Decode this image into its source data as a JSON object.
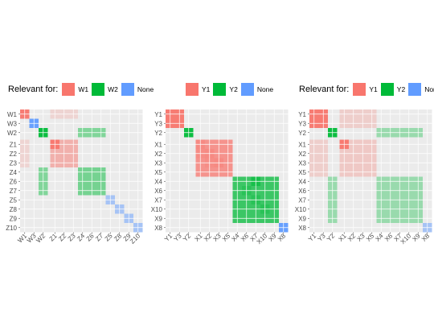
{
  "chart_data": [
    {
      "type": "heatmap",
      "legend": {
        "title": "Relevant for:",
        "entries": [
          {
            "label": "W1",
            "color": "#F8766D"
          },
          {
            "label": "W2",
            "color": "#00BA38"
          },
          {
            "label": "None",
            "color": "#619CFF"
          }
        ]
      },
      "labels": [
        "W1",
        "W3",
        "W2",
        "Z1",
        "Z2",
        "Z3",
        "Z4",
        "Z6",
        "Z7",
        "Z5",
        "Z8",
        "Z9",
        "Z10"
      ],
      "gaps_after": [
        2
      ],
      "blocks": [
        {
          "rows": [
            0,
            0
          ],
          "cols": [
            0,
            0
          ],
          "group": "W1",
          "alpha": 0.95
        },
        {
          "rows": [
            0,
            0
          ],
          "cols": [
            3,
            5
          ],
          "group": "W1",
          "alpha": 0.2
        },
        {
          "rows": [
            3,
            5
          ],
          "cols": [
            0,
            0
          ],
          "group": "W1",
          "alpha": 0.2
        },
        {
          "rows": [
            1,
            1
          ],
          "cols": [
            1,
            1
          ],
          "group": "None",
          "alpha": 0.95
        },
        {
          "rows": [
            2,
            2
          ],
          "cols": [
            2,
            2
          ],
          "group": "W2",
          "alpha": 0.95
        },
        {
          "rows": [
            2,
            2
          ],
          "cols": [
            6,
            8
          ],
          "group": "W2",
          "alpha": 0.45
        },
        {
          "rows": [
            6,
            8
          ],
          "cols": [
            2,
            2
          ],
          "group": "W2",
          "alpha": 0.45
        },
        {
          "rows": [
            3,
            5
          ],
          "cols": [
            3,
            5
          ],
          "group": "W1",
          "alpha": 0.5
        },
        {
          "rows": [
            3,
            3
          ],
          "cols": [
            3,
            3
          ],
          "group": "W1",
          "alpha": 0.95
        },
        {
          "rows": [
            6,
            8
          ],
          "cols": [
            6,
            8
          ],
          "group": "W2",
          "alpha": 0.5
        },
        {
          "rows": [
            9,
            9
          ],
          "cols": [
            9,
            9
          ],
          "group": "None",
          "alpha": 0.5
        },
        {
          "rows": [
            10,
            10
          ],
          "cols": [
            10,
            10
          ],
          "group": "None",
          "alpha": 0.5
        },
        {
          "rows": [
            11,
            11
          ],
          "cols": [
            11,
            11
          ],
          "group": "None",
          "alpha": 0.5
        },
        {
          "rows": [
            12,
            12
          ],
          "cols": [
            12,
            12
          ],
          "group": "None",
          "alpha": 0.5
        }
      ]
    },
    {
      "type": "heatmap",
      "legend": {
        "title": "",
        "entries": [
          {
            "label": "Y1",
            "color": "#F8766D"
          },
          {
            "label": "Y2",
            "color": "#00BA38"
          },
          {
            "label": "None",
            "color": "#619CFF"
          }
        ]
      },
      "labels": [
        "Y1",
        "Y3",
        "Y2",
        "X1",
        "X2",
        "X3",
        "X5",
        "X4",
        "X6",
        "X7",
        "X10",
        "X9",
        "X8"
      ],
      "gaps_after": [
        2
      ],
      "blocks": [
        {
          "rows": [
            0,
            1
          ],
          "cols": [
            0,
            1
          ],
          "group": "Y1",
          "alpha": 0.95
        },
        {
          "rows": [
            2,
            2
          ],
          "cols": [
            2,
            2
          ],
          "group": "Y2",
          "alpha": 0.95
        },
        {
          "rows": [
            3,
            6
          ],
          "cols": [
            3,
            6
          ],
          "group": "Y1",
          "alpha": 0.75
        },
        {
          "rows": [
            3,
            3
          ],
          "cols": [
            3,
            3
          ],
          "group": "Y1",
          "alpha": 0.3
        },
        {
          "rows": [
            4,
            4
          ],
          "cols": [
            4,
            4
          ],
          "group": "Y1",
          "alpha": 0.3
        },
        {
          "rows": [
            5,
            5
          ],
          "cols": [
            5,
            5
          ],
          "group": "Y1",
          "alpha": 0.3
        },
        {
          "rows": [
            4,
            4
          ],
          "cols": [
            3,
            3
          ],
          "group": "Y1",
          "alpha": 0.2
        },
        {
          "rows": [
            5,
            5
          ],
          "cols": [
            4,
            4
          ],
          "group": "Y1",
          "alpha": 0.2
        },
        {
          "rows": [
            7,
            11
          ],
          "cols": [
            7,
            11
          ],
          "group": "Y2",
          "alpha": 0.75
        },
        {
          "rows": [
            7,
            7
          ],
          "cols": [
            9,
            9
          ],
          "group": "Y2",
          "alpha": 0.6
        },
        {
          "rows": [
            8,
            8
          ],
          "cols": [
            8,
            8
          ],
          "group": "Y2",
          "alpha": 0.3
        },
        {
          "rows": [
            9,
            9
          ],
          "cols": [
            9,
            9
          ],
          "group": "Y2",
          "alpha": 0.3
        },
        {
          "rows": [
            10,
            10
          ],
          "cols": [
            10,
            10
          ],
          "group": "Y2",
          "alpha": 0.3
        },
        {
          "rows": [
            12,
            12
          ],
          "cols": [
            12,
            12
          ],
          "group": "None",
          "alpha": 0.95
        }
      ]
    },
    {
      "type": "heatmap",
      "legend": {
        "title": "Relevant for:",
        "entries": [
          {
            "label": "Y1",
            "color": "#F8766D"
          },
          {
            "label": "Y2",
            "color": "#00BA38"
          },
          {
            "label": "None",
            "color": "#619CFF"
          }
        ]
      },
      "labels": [
        "Y1",
        "Y3",
        "Y2",
        "X1",
        "X2",
        "X3",
        "X5",
        "X4",
        "X6",
        "X7",
        "X10",
        "X9",
        "X8"
      ],
      "gaps_after": [
        2
      ],
      "blocks": [
        {
          "rows": [
            0,
            1
          ],
          "cols": [
            0,
            1
          ],
          "group": "Y1",
          "alpha": 0.95
        },
        {
          "rows": [
            0,
            1
          ],
          "cols": [
            3,
            6
          ],
          "group": "Y1",
          "alpha": 0.25
        },
        {
          "rows": [
            3,
            6
          ],
          "cols": [
            0,
            1
          ],
          "group": "Y1",
          "alpha": 0.25
        },
        {
          "rows": [
            2,
            2
          ],
          "cols": [
            2,
            2
          ],
          "group": "Y2",
          "alpha": 0.95
        },
        {
          "rows": [
            2,
            2
          ],
          "cols": [
            7,
            11
          ],
          "group": "Y2",
          "alpha": 0.35
        },
        {
          "rows": [
            7,
            11
          ],
          "cols": [
            2,
            2
          ],
          "group": "Y2",
          "alpha": 0.35
        },
        {
          "rows": [
            3,
            6
          ],
          "cols": [
            3,
            6
          ],
          "group": "Y1",
          "alpha": 0.3
        },
        {
          "rows": [
            3,
            3
          ],
          "cols": [
            3,
            3
          ],
          "group": "Y1",
          "alpha": 0.95
        },
        {
          "rows": [
            7,
            11
          ],
          "cols": [
            7,
            11
          ],
          "group": "Y2",
          "alpha": 0.35
        },
        {
          "rows": [
            12,
            12
          ],
          "cols": [
            12,
            12
          ],
          "group": "None",
          "alpha": 0.5
        }
      ]
    }
  ]
}
